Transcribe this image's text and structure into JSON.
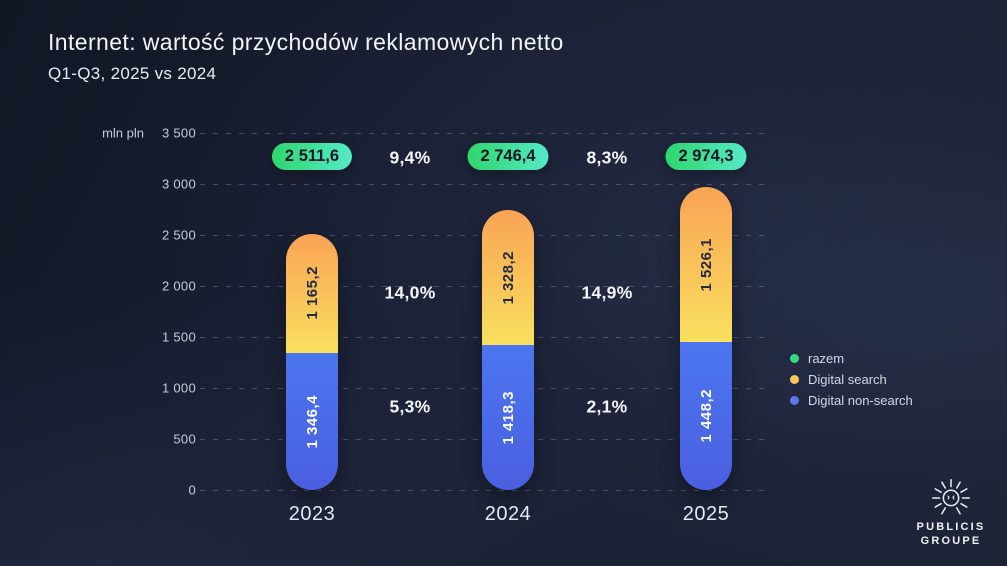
{
  "slide": {
    "title": "Internet: wartość przychodów reklamowych netto",
    "subtitle": "Q1-Q3, 2025 vs 2024"
  },
  "chart_data": {
    "type": "bar",
    "stacked": true,
    "title": "Internet: wartość przychodów reklamowych netto",
    "subtitle": "Q1-Q3, 2025 vs 2024",
    "categories": [
      "2023",
      "2024",
      "2025"
    ],
    "series": [
      {
        "name": "Digital non-search",
        "values": [
          1346.4,
          1418.3,
          1448.2
        ],
        "labels": [
          "1 346,4",
          "1 418,3",
          "1 448,2"
        ]
      },
      {
        "name": "Digital search",
        "values": [
          1165.2,
          1328.2,
          1526.1
        ],
        "labels": [
          "1 165,2",
          "1 328,2",
          "1 526,1"
        ]
      }
    ],
    "totals": {
      "name": "razem",
      "values": [
        2511.6,
        2746.4,
        2974.3
      ],
      "labels": [
        "2 511,6",
        "2 746,4",
        "2 974,3"
      ]
    },
    "growth_labels": {
      "total": [
        "9,4%",
        "8,3%"
      ],
      "digital_search": [
        "14,0%",
        "14,9%"
      ],
      "digital_non_search": [
        "5,3%",
        "2,1%"
      ]
    },
    "y_axis": {
      "label": "mln pln",
      "min": 0,
      "max": 3500,
      "step": 500,
      "ticks": [
        "3 500",
        "3 000",
        "2 500",
        "2 000",
        "1 500",
        "1 000",
        "500",
        "0"
      ],
      "grid": "dashed"
    },
    "legend_position": "right"
  },
  "legend": {
    "items": [
      {
        "label": "razem",
        "color": "#34dc82"
      },
      {
        "label": "Digital search",
        "color": "#f6c45a"
      },
      {
        "label": "Digital non-search",
        "color": "#5b78f0"
      }
    ]
  },
  "colors": {
    "badge_gradient": [
      "#2fd66c",
      "#55eac7"
    ],
    "search_gradient": [
      "#f9a355",
      "#f9e05e"
    ],
    "non_search_gradient": [
      "#4b76ee",
      "#4a5fe0"
    ],
    "background": "#181e30"
  },
  "logo": {
    "line1": "PUBLICIS",
    "line2": "GROUPE"
  }
}
